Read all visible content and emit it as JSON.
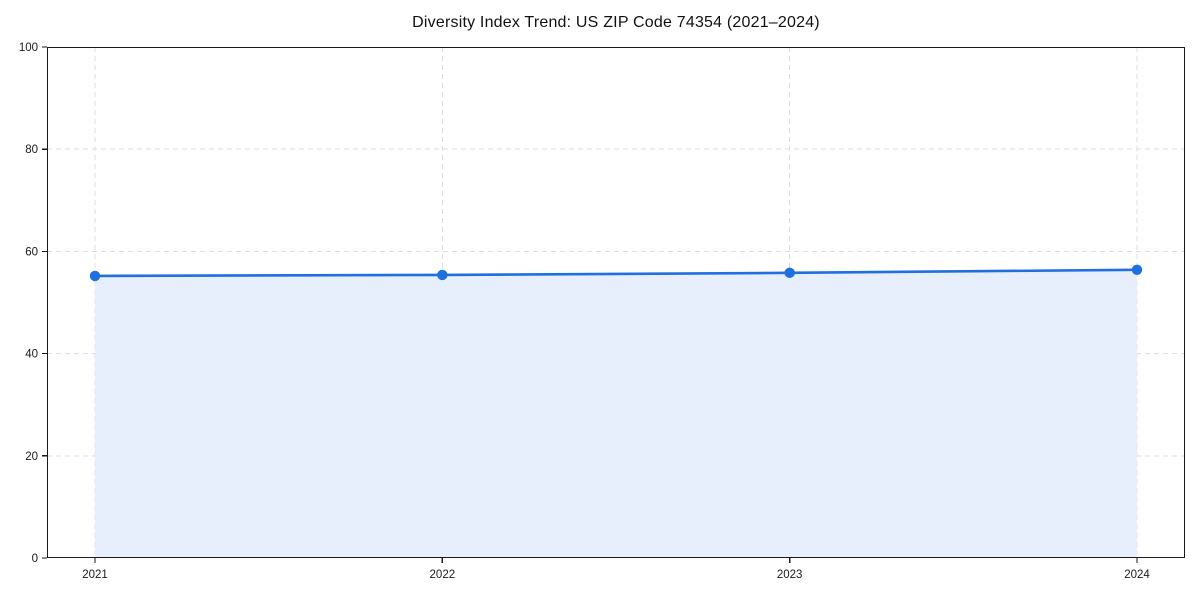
{
  "chart_data": {
    "type": "line",
    "title": "Diversity Index Trend: US ZIP Code 74354 (2021–2024)",
    "categories": [
      "2021",
      "2022",
      "2023",
      "2024"
    ],
    "series": [
      {
        "name": "Diversity Index",
        "values": [
          55.2,
          55.4,
          55.8,
          56.4
        ]
      }
    ],
    "xlabel": "",
    "ylabel": "",
    "ylim": [
      0,
      100
    ],
    "yticks": [
      0,
      20,
      40,
      60,
      80,
      100
    ],
    "grid": "dashed-both-axes",
    "legend_position": "none",
    "marker": "circle",
    "area_fill": true,
    "colors": {
      "line": "#1f6fe0",
      "marker": "#1f6fe0",
      "fill": "#e8effc",
      "gridline": "#dcdcdc",
      "axis": "#1a1a1a",
      "tick_text": "#1a1a1a",
      "background": "#ffffff"
    }
  }
}
